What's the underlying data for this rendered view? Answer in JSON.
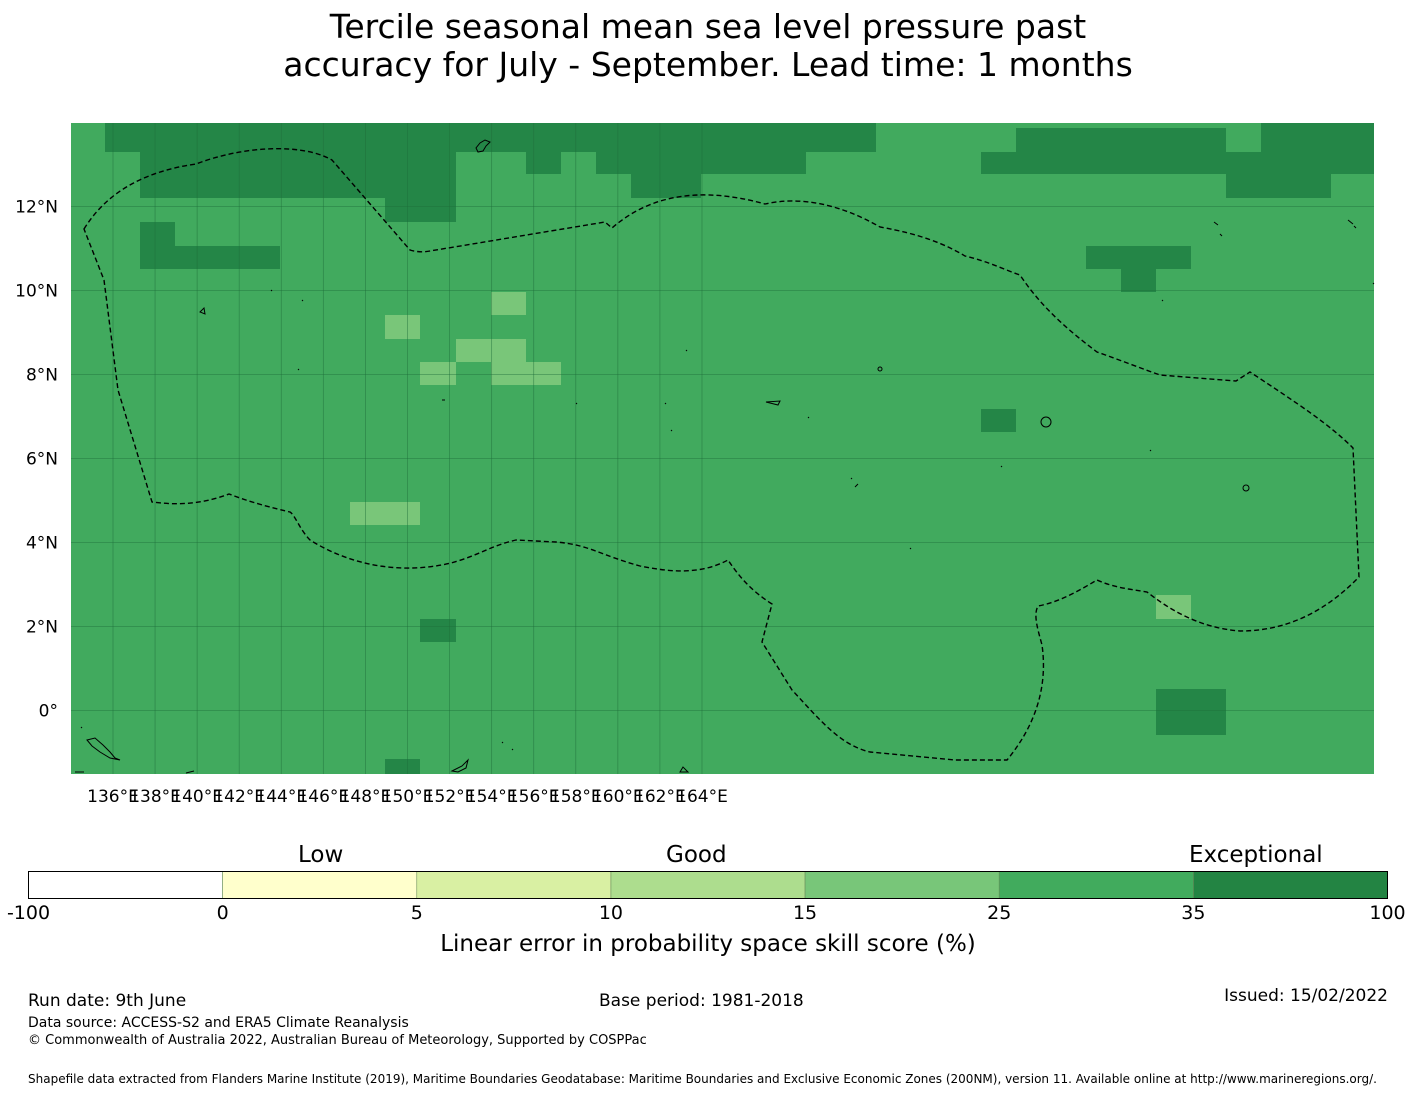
{
  "title": {
    "line1": "Tercile seasonal mean sea level pressure past",
    "line2": "accuracy for July - September. Lead time: 1 months"
  },
  "map": {
    "background_color": "#41aa5e",
    "dark_color": "#248647",
    "light_color": "#79c679",
    "lon_ticks": [
      "136°E",
      "138°E",
      "140°E",
      "142°E",
      "144°E",
      "146°E",
      "148°E",
      "150°E",
      "152°E",
      "154°E",
      "156°E",
      "158°E",
      "160°E",
      "162°E",
      "164°E"
    ],
    "lat_ticks": [
      "12°N",
      "10°N",
      "8°N",
      "6°N",
      "4°N",
      "2°N",
      "0°"
    ]
  },
  "colorbar": {
    "categories": [
      "Low",
      "Good",
      "Exceptional"
    ],
    "ticks": [
      "-100",
      "0",
      "5",
      "10",
      "15",
      "25",
      "35",
      "100"
    ],
    "colors": [
      "#ffffff",
      "#ffffcc",
      "#d9f0a3",
      "#addd8e",
      "#78c679",
      "#41ab5d",
      "#238443"
    ],
    "title": "Linear error in probability space skill score (%)"
  },
  "footer": {
    "run_date": "Run date: 9th June",
    "base_period": "Base period: 1981-2018",
    "issued": "Issued: 15/02/2022",
    "data_source": "Data source: ACCESS-S2 and ERA5 Climate Reanalysis",
    "copyright": "© Commonwealth of Australia 2022, Australian Bureau of Meteorology, Supported by COSPPac",
    "shapefile": "Shapefile data extracted from Flanders Marine Institute (2019), Maritime Boundaries Geodatabase: Maritime Boundaries and Exclusive Economic Zones (200NM), version 11. Available online at http://www.marineregions.org/."
  }
}
